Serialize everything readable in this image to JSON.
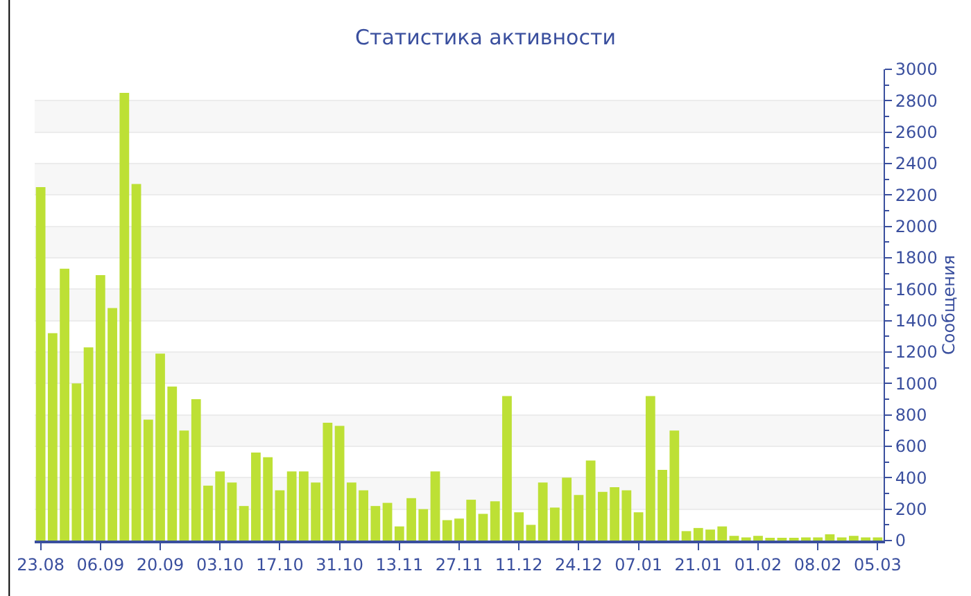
{
  "chart_data": {
    "type": "bar",
    "title": "Статистика активности",
    "y2label": "Сообщения",
    "categories": [
      "23.08",
      null,
      null,
      null,
      null,
      "06.09",
      null,
      null,
      null,
      null,
      "20.09",
      null,
      null,
      null,
      null,
      "03.10",
      null,
      null,
      null,
      null,
      "17.10",
      null,
      null,
      null,
      null,
      "31.10",
      null,
      null,
      null,
      null,
      "13.11",
      null,
      null,
      null,
      null,
      "27.11",
      null,
      null,
      null,
      null,
      "11.12",
      null,
      null,
      null,
      null,
      "24.12",
      null,
      null,
      null,
      null,
      "07.01",
      null,
      null,
      null,
      null,
      "21.01",
      null,
      null,
      null,
      null,
      "01.02",
      null,
      null,
      null,
      null,
      "08.02",
      null,
      null,
      null,
      null,
      "05.03"
    ],
    "series": [
      {
        "color": "#bde035",
        "axis": "y2",
        "values": [
          2250,
          1320,
          1730,
          1000,
          1230,
          1690,
          1480,
          2850,
          2270,
          770,
          1190,
          980,
          700,
          900,
          350,
          440,
          370,
          220,
          560,
          530,
          320,
          440,
          440,
          370,
          750,
          730,
          370,
          320,
          220,
          240,
          90,
          270,
          200,
          440,
          130,
          140,
          260,
          170,
          250,
          920,
          180,
          100,
          370,
          210,
          400,
          290,
          510,
          310,
          340,
          320,
          180,
          920,
          450,
          700,
          60,
          80,
          70,
          90,
          30,
          20,
          30,
          10,
          10,
          10,
          20,
          20,
          40,
          20,
          30,
          20,
          20
        ]
      }
    ],
    "y2lim": [
      0,
      3000
    ],
    "y2ticks": [
      0,
      200,
      400,
      600,
      800,
      1000,
      1200,
      1400,
      1600,
      1800,
      2000,
      2200,
      2400,
      2600,
      2800,
      3000
    ],
    "grid": "y"
  }
}
